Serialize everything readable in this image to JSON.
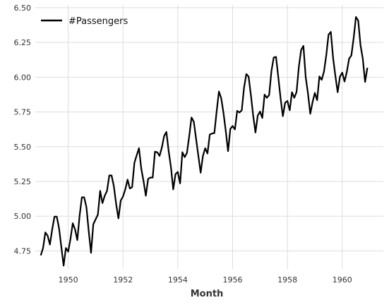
{
  "chart_data": {
    "type": "line",
    "title": "",
    "xlabel": "Month",
    "ylabel": "",
    "xlim": [
      1948.8,
      1961.5
    ],
    "ylim": [
      4.62,
      6.52
    ],
    "grid": true,
    "legend_position": "top-left",
    "colors": {
      "line": "#000000",
      "grid": "#dddddd",
      "text": "#333333"
    },
    "x_ticks": [
      1950,
      1952,
      1954,
      1956,
      1958,
      1960
    ],
    "x_tick_labels": [
      "1950",
      "1952",
      "1954",
      "1956",
      "1958",
      "1960"
    ],
    "y_ticks": [
      4.75,
      5.0,
      5.25,
      5.5,
      5.75,
      6.0,
      6.25,
      6.5
    ],
    "y_tick_labels": [
      "4.75",
      "5.00",
      "5.25",
      "5.50",
      "5.75",
      "6.00",
      "6.25",
      "6.50"
    ],
    "series": [
      {
        "name": "#Passengers",
        "x_start": 1949.0,
        "x_step": 0.0833333,
        "values": [
          4.718,
          4.771,
          4.883,
          4.86,
          4.796,
          4.905,
          4.997,
          4.997,
          4.913,
          4.779,
          4.644,
          4.771,
          4.745,
          4.836,
          4.949,
          4.905,
          4.828,
          5.004,
          5.136,
          5.136,
          5.063,
          4.891,
          4.736,
          4.942,
          4.977,
          5.011,
          5.182,
          5.094,
          5.147,
          5.182,
          5.293,
          5.293,
          5.215,
          5.088,
          4.984,
          5.112,
          5.142,
          5.193,
          5.263,
          5.199,
          5.209,
          5.384,
          5.438,
          5.489,
          5.342,
          5.252,
          5.147,
          5.268,
          5.278,
          5.278,
          5.464,
          5.46,
          5.434,
          5.493,
          5.576,
          5.606,
          5.468,
          5.352,
          5.193,
          5.303,
          5.318,
          5.236,
          5.46,
          5.425,
          5.455,
          5.576,
          5.71,
          5.68,
          5.557,
          5.434,
          5.313,
          5.434,
          5.489,
          5.451,
          5.587,
          5.595,
          5.598,
          5.753,
          5.897,
          5.849,
          5.743,
          5.613,
          5.468,
          5.628,
          5.649,
          5.624,
          5.758,
          5.746,
          5.762,
          5.924,
          6.023,
          6.004,
          5.872,
          5.724,
          5.602,
          5.724,
          5.753,
          5.707,
          5.875,
          5.852,
          5.872,
          6.045,
          6.142,
          6.146,
          6.001,
          5.849,
          5.72,
          5.817,
          5.829,
          5.762,
          5.892,
          5.852,
          5.894,
          6.075,
          6.196,
          6.225,
          6.001,
          5.883,
          5.737,
          5.82,
          5.887,
          5.835,
          6.006,
          5.981,
          6.04,
          6.157,
          6.306,
          6.326,
          6.138,
          6.009,
          5.892,
          6.004,
          6.033,
          5.969,
          6.038,
          6.133,
          6.157,
          6.282,
          6.433,
          6.407,
          6.23,
          6.133,
          5.966,
          6.068
        ]
      }
    ]
  }
}
